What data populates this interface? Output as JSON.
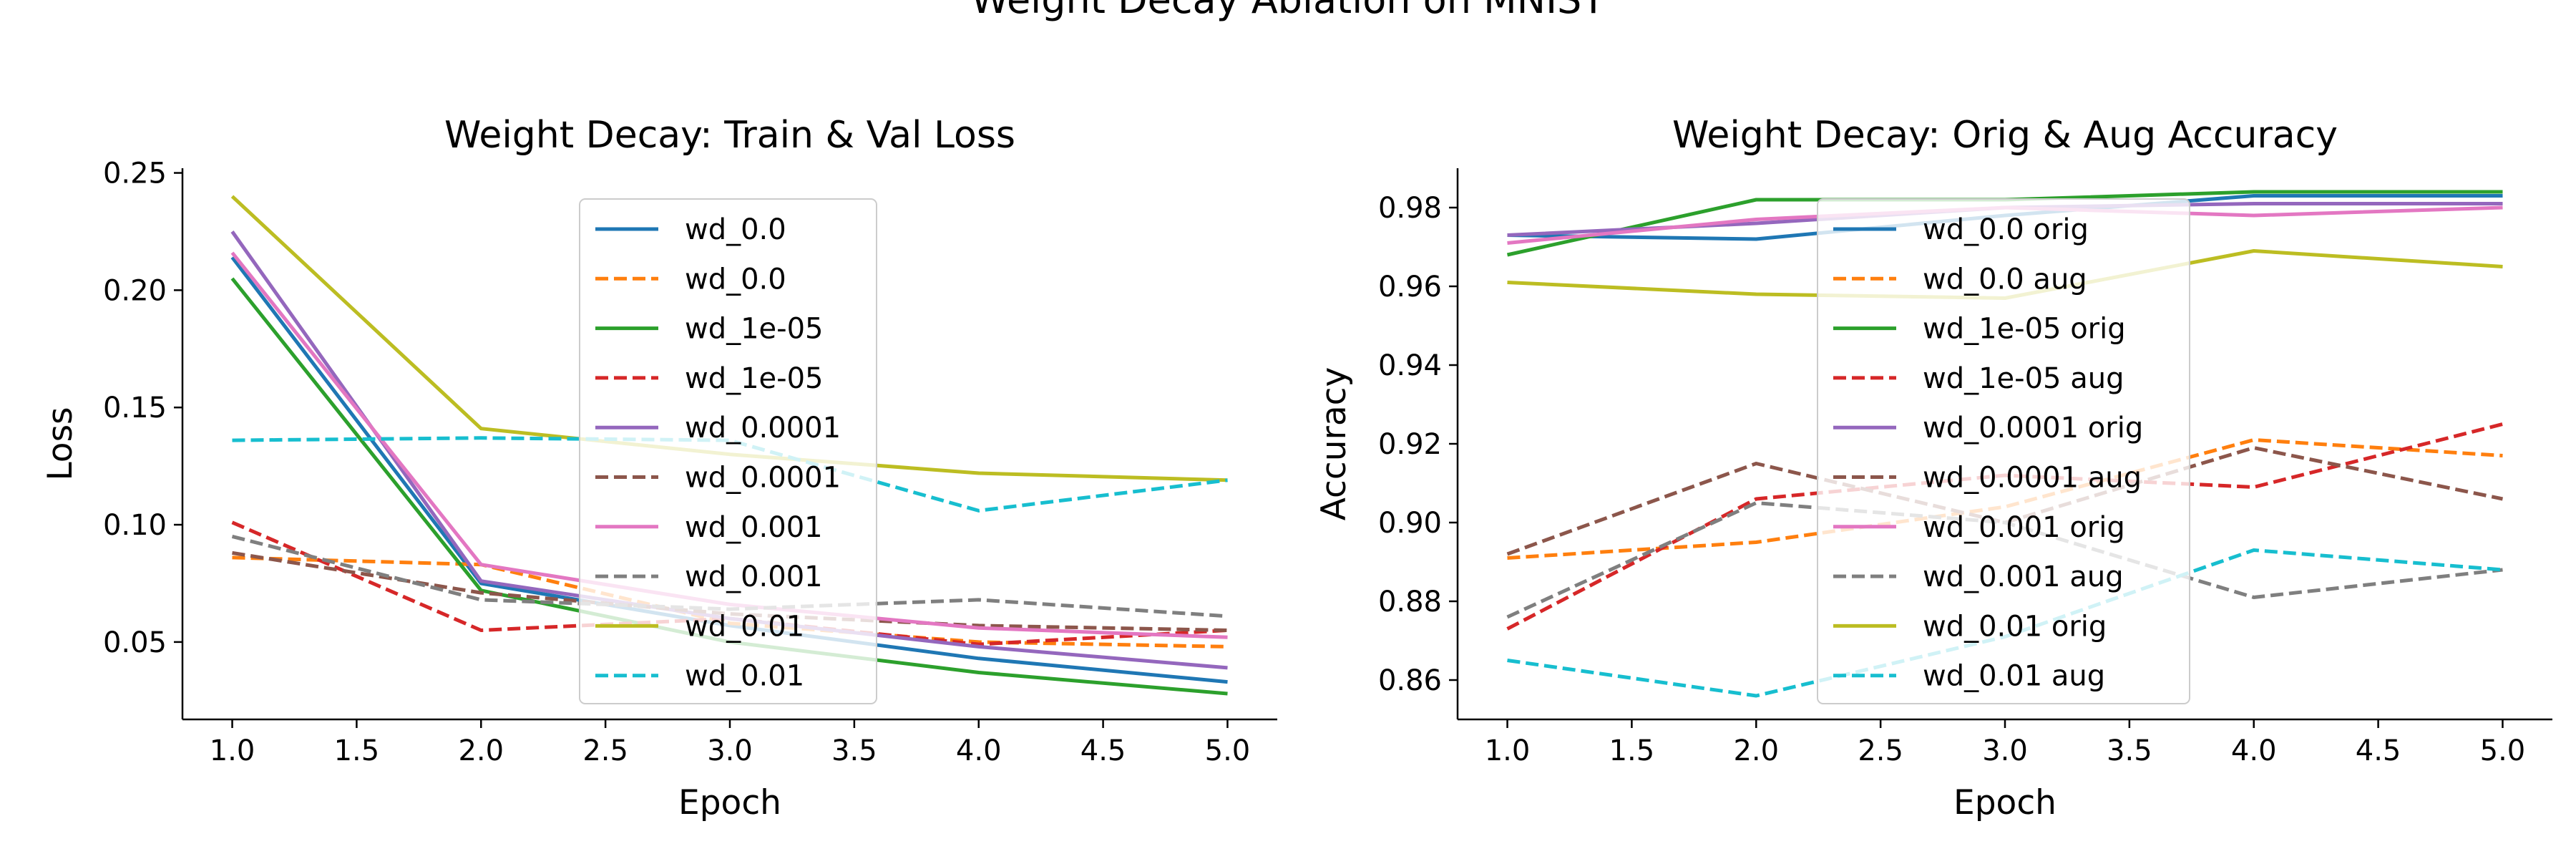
{
  "figure": {
    "suptitle": "Weight Decay Ablation on MNIST"
  },
  "chart_data": [
    {
      "type": "line",
      "title": "Weight Decay: Train & Val Loss",
      "xlabel": "Epoch",
      "ylabel": "Loss",
      "xlim": [
        0.8,
        5.2
      ],
      "ylim": [
        0.017,
        0.252
      ],
      "xticks": [
        "1.0",
        "1.5",
        "2.0",
        "2.5",
        "3.0",
        "3.5",
        "4.0",
        "4.5",
        "5.0"
      ],
      "yticks": [
        "0.05",
        "0.10",
        "0.15",
        "0.20",
        "0.25"
      ],
      "grid": false,
      "legend": "upper center",
      "x": [
        1,
        2,
        3,
        4,
        5
      ],
      "series": [
        {
          "name": "wd_0.0",
          "color": "#1f77b4",
          "dash": "solid",
          "values": [
            0.214,
            0.075,
            0.057,
            0.043,
            0.033
          ]
        },
        {
          "name": "wd_0.0",
          "color": "#ff7f0e",
          "dash": "dashed",
          "values": [
            0.086,
            0.083,
            0.058,
            0.05,
            0.048
          ]
        },
        {
          "name": "wd_1e-05",
          "color": "#2ca02c",
          "dash": "solid",
          "values": [
            0.205,
            0.072,
            0.05,
            0.037,
            0.028
          ]
        },
        {
          "name": "wd_1e-05",
          "color": "#d62728",
          "dash": "dashed",
          "values": [
            0.101,
            0.055,
            0.06,
            0.049,
            0.055
          ]
        },
        {
          "name": "wd_0.0001",
          "color": "#9467bd",
          "dash": "solid",
          "values": [
            0.225,
            0.076,
            0.06,
            0.048,
            0.039
          ]
        },
        {
          "name": "wd_0.0001",
          "color": "#8c564b",
          "dash": "dashed",
          "values": [
            0.088,
            0.071,
            0.062,
            0.057,
            0.055
          ]
        },
        {
          "name": "wd_0.001",
          "color": "#e377c2",
          "dash": "solid",
          "values": [
            0.216,
            0.083,
            0.066,
            0.056,
            0.052
          ]
        },
        {
          "name": "wd_0.001",
          "color": "#7f7f7f",
          "dash": "dashed",
          "values": [
            0.095,
            0.068,
            0.064,
            0.068,
            0.061
          ]
        },
        {
          "name": "wd_0.01",
          "color": "#bcbd22",
          "dash": "solid",
          "values": [
            0.24,
            0.141,
            0.13,
            0.122,
            0.119
          ]
        },
        {
          "name": "wd_0.01",
          "color": "#17becf",
          "dash": "dashed",
          "values": [
            0.136,
            0.137,
            0.136,
            0.106,
            0.119
          ]
        }
      ]
    },
    {
      "type": "line",
      "title": "Weight Decay: Orig & Aug Accuracy",
      "xlabel": "Epoch",
      "ylabel": "Accuracy",
      "xlim": [
        0.8,
        5.2
      ],
      "ylim": [
        0.85,
        0.99
      ],
      "xticks": [
        "1.0",
        "1.5",
        "2.0",
        "2.5",
        "3.0",
        "3.5",
        "4.0",
        "4.5",
        "5.0"
      ],
      "yticks": [
        "0.86",
        "0.88",
        "0.90",
        "0.92",
        "0.94",
        "0.96",
        "0.98"
      ],
      "grid": false,
      "legend": "upper center",
      "x": [
        1,
        2,
        3,
        4,
        5
      ],
      "series": [
        {
          "name": "wd_0.0 orig",
          "color": "#1f77b4",
          "dash": "solid",
          "values": [
            0.973,
            0.972,
            0.978,
            0.983,
            0.983
          ]
        },
        {
          "name": "wd_0.0 aug",
          "color": "#ff7f0e",
          "dash": "dashed",
          "values": [
            0.891,
            0.895,
            0.904,
            0.921,
            0.917
          ]
        },
        {
          "name": "wd_1e-05 orig",
          "color": "#2ca02c",
          "dash": "solid",
          "values": [
            0.968,
            0.982,
            0.982,
            0.984,
            0.984
          ]
        },
        {
          "name": "wd_1e-05 aug",
          "color": "#d62728",
          "dash": "dashed",
          "values": [
            0.873,
            0.906,
            0.912,
            0.909,
            0.925
          ]
        },
        {
          "name": "wd_0.0001 orig",
          "color": "#9467bd",
          "dash": "solid",
          "values": [
            0.973,
            0.976,
            0.98,
            0.981,
            0.981
          ]
        },
        {
          "name": "wd_0.0001 aug",
          "color": "#8c564b",
          "dash": "dashed",
          "values": [
            0.892,
            0.915,
            0.9,
            0.919,
            0.906
          ]
        },
        {
          "name": "wd_0.001 orig",
          "color": "#e377c2",
          "dash": "solid",
          "values": [
            0.971,
            0.977,
            0.98,
            0.978,
            0.98
          ]
        },
        {
          "name": "wd_0.001 aug",
          "color": "#7f7f7f",
          "dash": "dashed",
          "values": [
            0.876,
            0.905,
            0.9,
            0.881,
            0.888
          ]
        },
        {
          "name": "wd_0.01 orig",
          "color": "#bcbd22",
          "dash": "solid",
          "values": [
            0.961,
            0.958,
            0.957,
            0.969,
            0.965
          ]
        },
        {
          "name": "wd_0.01 aug",
          "color": "#17becf",
          "dash": "dashed",
          "values": [
            0.865,
            0.856,
            0.871,
            0.893,
            0.888
          ]
        }
      ]
    }
  ]
}
